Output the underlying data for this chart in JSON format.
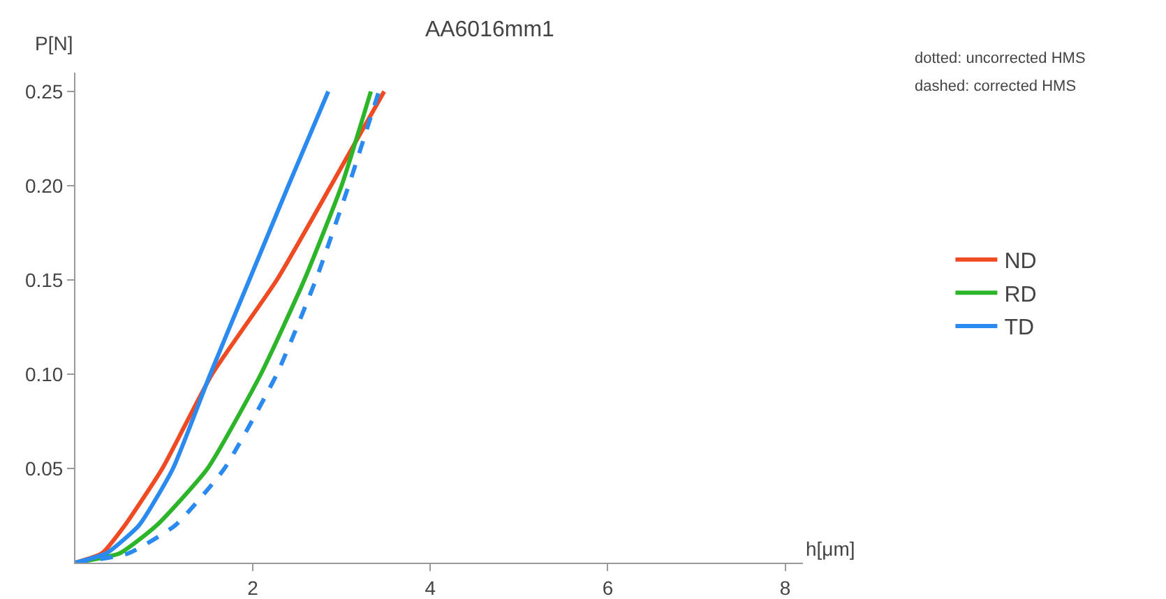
{
  "chart_data": {
    "type": "line",
    "title": "AA6016mm1",
    "xlabel": "h[μm]",
    "ylabel": "P[N]",
    "annotations": [
      "dotted: uncorrected HMS",
      "dashed: corrected HMS"
    ],
    "xlim": [
      0,
      8.2
    ],
    "xticks": [
      2,
      4,
      6,
      8
    ],
    "ylim": [
      0,
      0.26
    ],
    "yticks": [
      0.05,
      {
        "value": 0.1,
        "label": "0.10"
      },
      0.15,
      {
        "value": 0.2,
        "label": "0.20"
      },
      0.25
    ],
    "grid": false,
    "legend": "right",
    "series": [
      {
        "name": "ND",
        "color": "#f04a23",
        "line_style": "solid",
        "x": [
          0,
          0.3,
          0.56,
          0.98,
          1.54,
          2.27,
          2.88,
          3.48
        ],
        "values": [
          0,
          0.005,
          0.02,
          0.05,
          0.1,
          0.15,
          0.2,
          0.25
        ]
      },
      {
        "name": "RD",
        "color": "#2db52a",
        "line_style": "solid",
        "x": [
          0,
          0.5,
          0.92,
          1.49,
          2.09,
          2.58,
          3.0,
          3.33
        ],
        "values": [
          0,
          0.005,
          0.02,
          0.05,
          0.1,
          0.15,
          0.2,
          0.25
        ]
      },
      {
        "name": "TD",
        "color": "#2b8af0",
        "line_style": "solid",
        "x": [
          0,
          0.35,
          0.72,
          1.1,
          1.52,
          1.96,
          2.4,
          2.85
        ],
        "values": [
          0,
          0.005,
          0.02,
          0.05,
          0.1,
          0.15,
          0.2,
          0.25
        ]
      },
      {
        "color": "#2b8af0",
        "line_style": "dashed",
        "x": [
          0,
          0.6,
          1.13,
          1.68,
          2.27,
          2.71,
          3.08,
          3.42
        ],
        "values": [
          0,
          0.005,
          0.02,
          0.05,
          0.1,
          0.15,
          0.2,
          0.25
        ]
      }
    ]
  }
}
